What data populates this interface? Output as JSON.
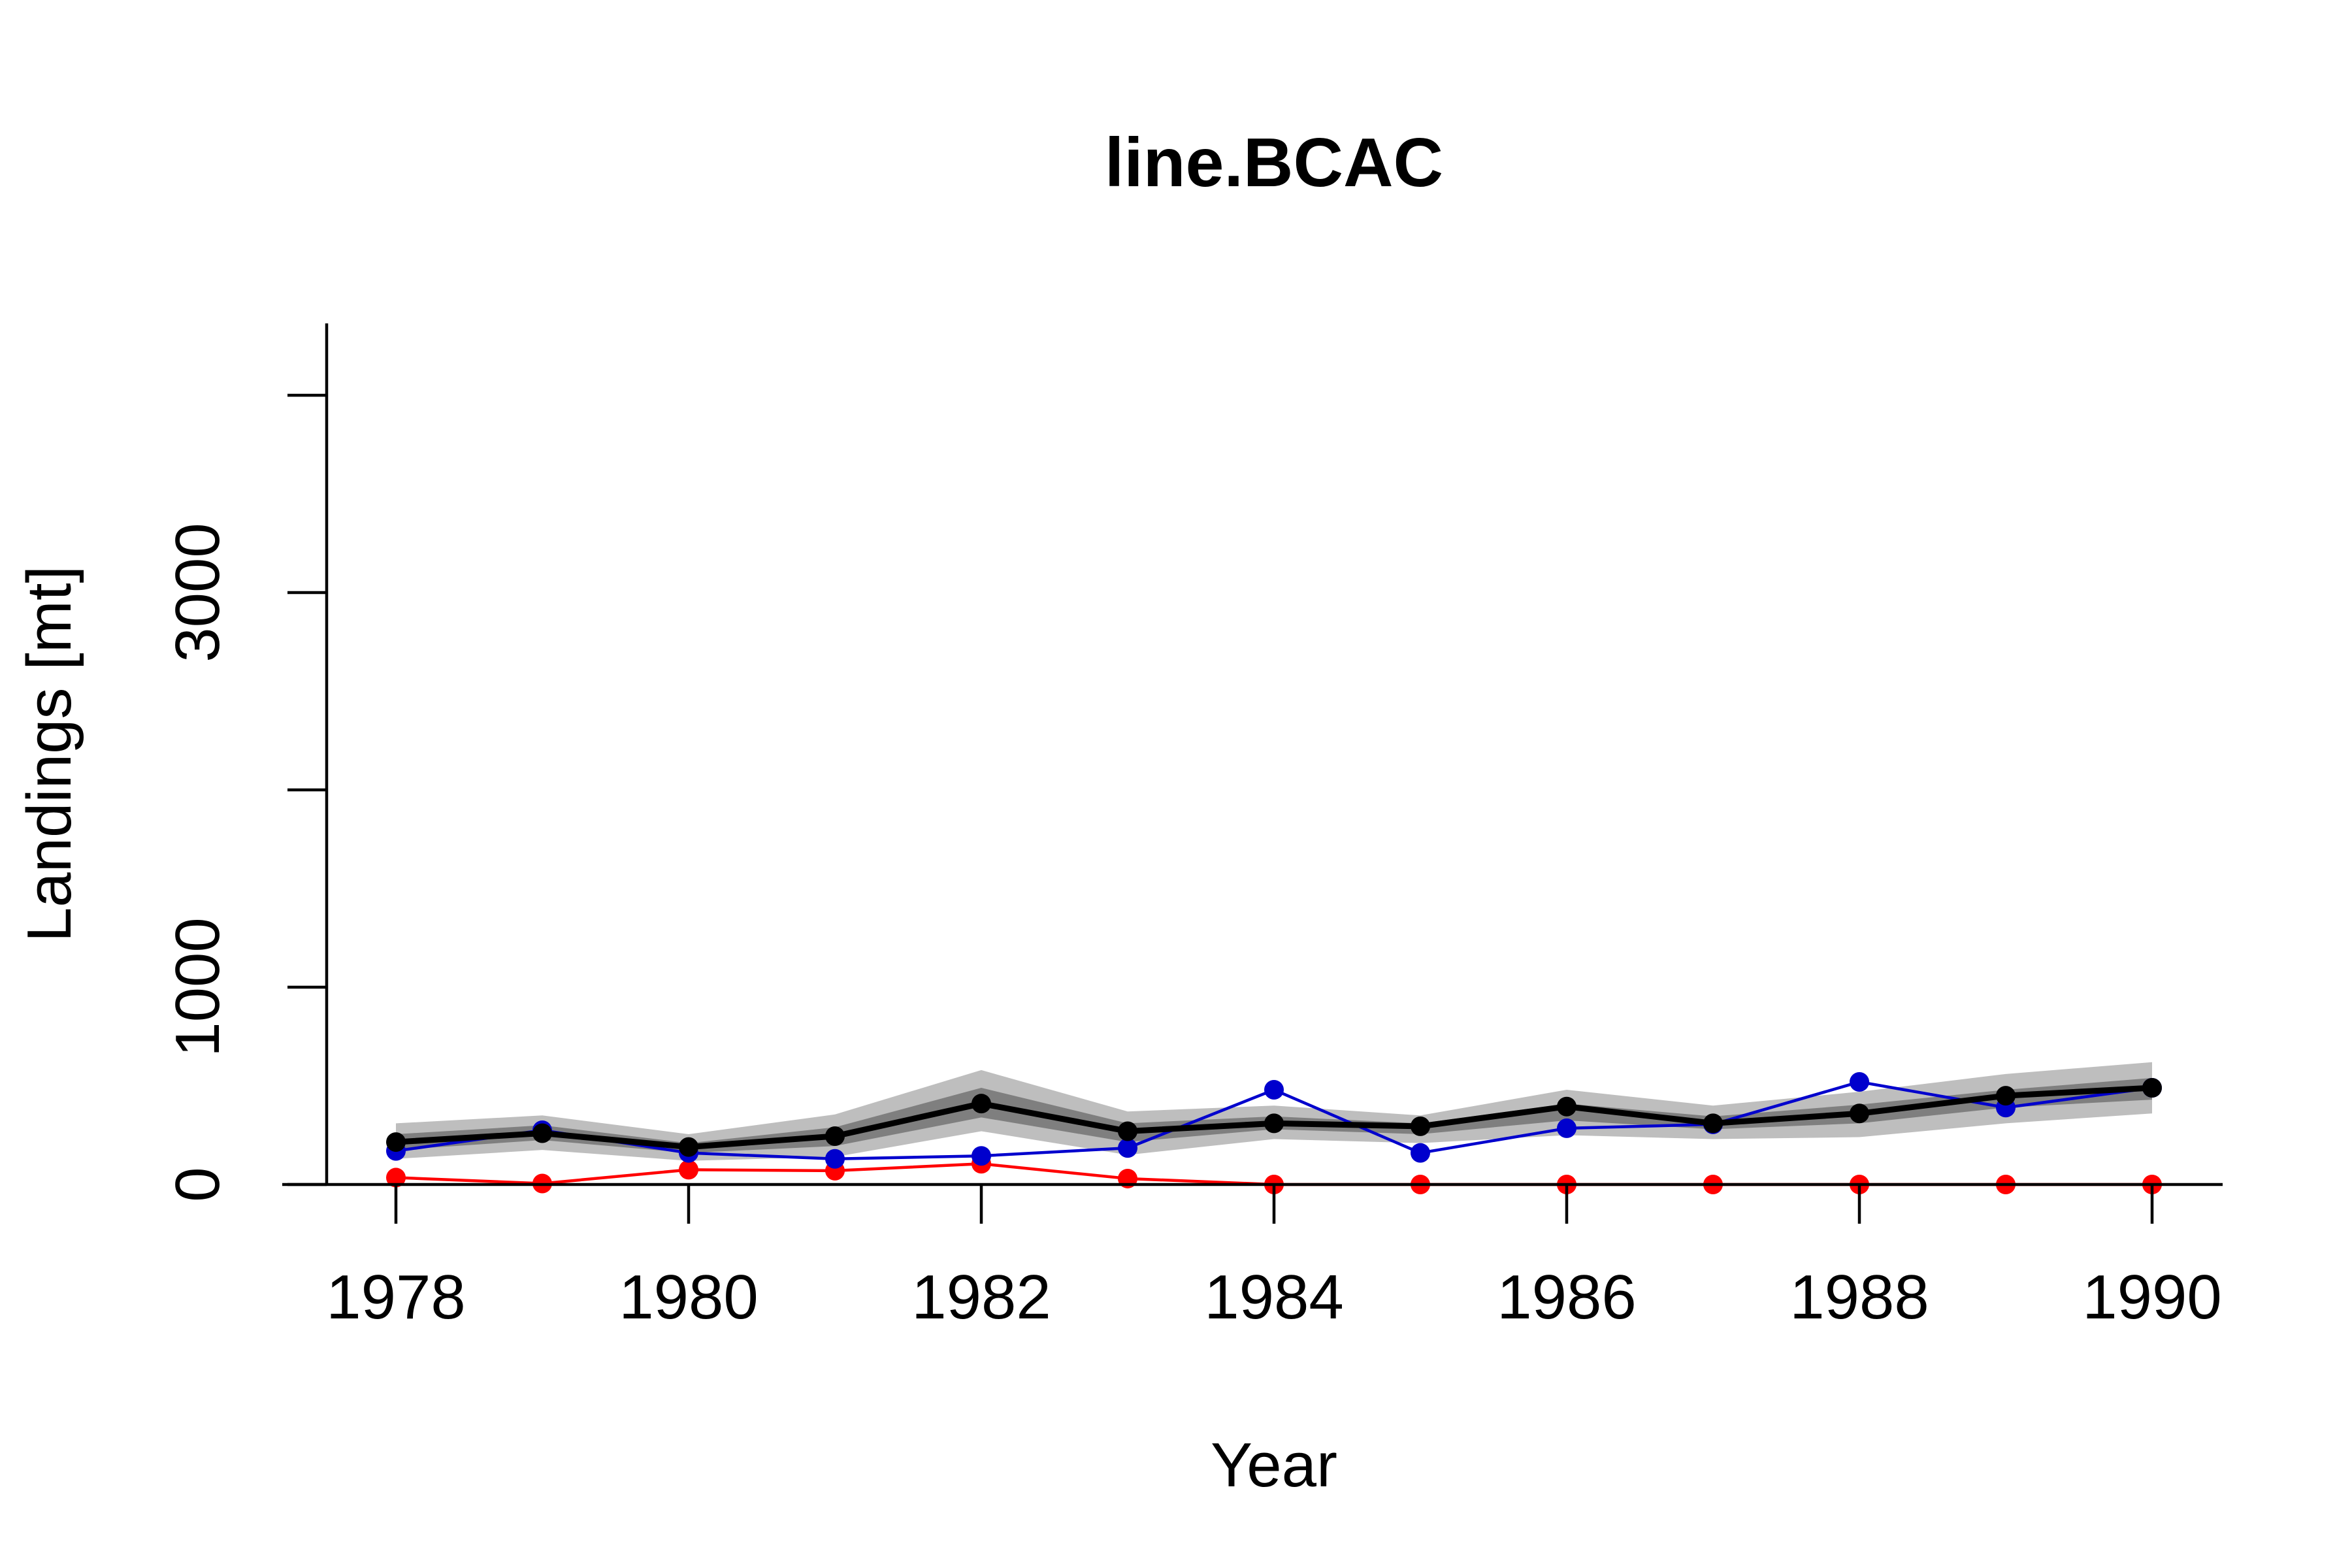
{
  "chart_data": {
    "type": "line",
    "title": "line.BCAC",
    "xlabel": "Year",
    "ylabel": "Landings [mt]",
    "xlim": [
      1977.5,
      1990.5
    ],
    "ylim": [
      0,
      4000
    ],
    "x_ticks": [
      1978,
      1980,
      1982,
      1984,
      1986,
      1988,
      1990
    ],
    "y_ticks": [
      0,
      1000,
      2000,
      3000,
      4000
    ],
    "y_tick_labels": [
      "0",
      "1000",
      "",
      "3000",
      ""
    ],
    "x": [
      1978,
      1979,
      1980,
      1981,
      1982,
      1983,
      1984,
      1985,
      1986,
      1987,
      1988,
      1989,
      1990
    ],
    "bands": {
      "outer": {
        "color": "#bebebe",
        "lower": [
          130,
          175,
          120,
          140,
          270,
          150,
          230,
          210,
          250,
          230,
          240,
          310,
          360
        ],
        "upper": [
          310,
          350,
          255,
          355,
          580,
          370,
          400,
          350,
          480,
          400,
          470,
          560,
          620
        ]
      },
      "inner": {
        "color": "#7f7f7f",
        "lower": [
          175,
          225,
          160,
          195,
          340,
          215,
          280,
          255,
          325,
          280,
          310,
          390,
          430
        ],
        "upper": [
          255,
          300,
          210,
          290,
          490,
          310,
          345,
          310,
          410,
          345,
          405,
          480,
          540
        ]
      }
    },
    "series": [
      {
        "color": "#000000",
        "line_width": 9,
        "values": [
          215,
          260,
          190,
          245,
          410,
          270,
          310,
          295,
          395,
          310,
          360,
          450,
          490
        ]
      },
      {
        "color": "#0000cd",
        "line_width": 4.5,
        "values": [
          170,
          275,
          160,
          130,
          145,
          185,
          480,
          160,
          285,
          305,
          520,
          390,
          490
        ]
      },
      {
        "color": "#ff0000",
        "line_width": 4.5,
        "values": [
          35,
          5,
          75,
          70,
          105,
          30,
          0,
          0,
          0,
          0,
          0,
          0,
          0
        ]
      }
    ],
    "grid": false,
    "legend": "none"
  }
}
